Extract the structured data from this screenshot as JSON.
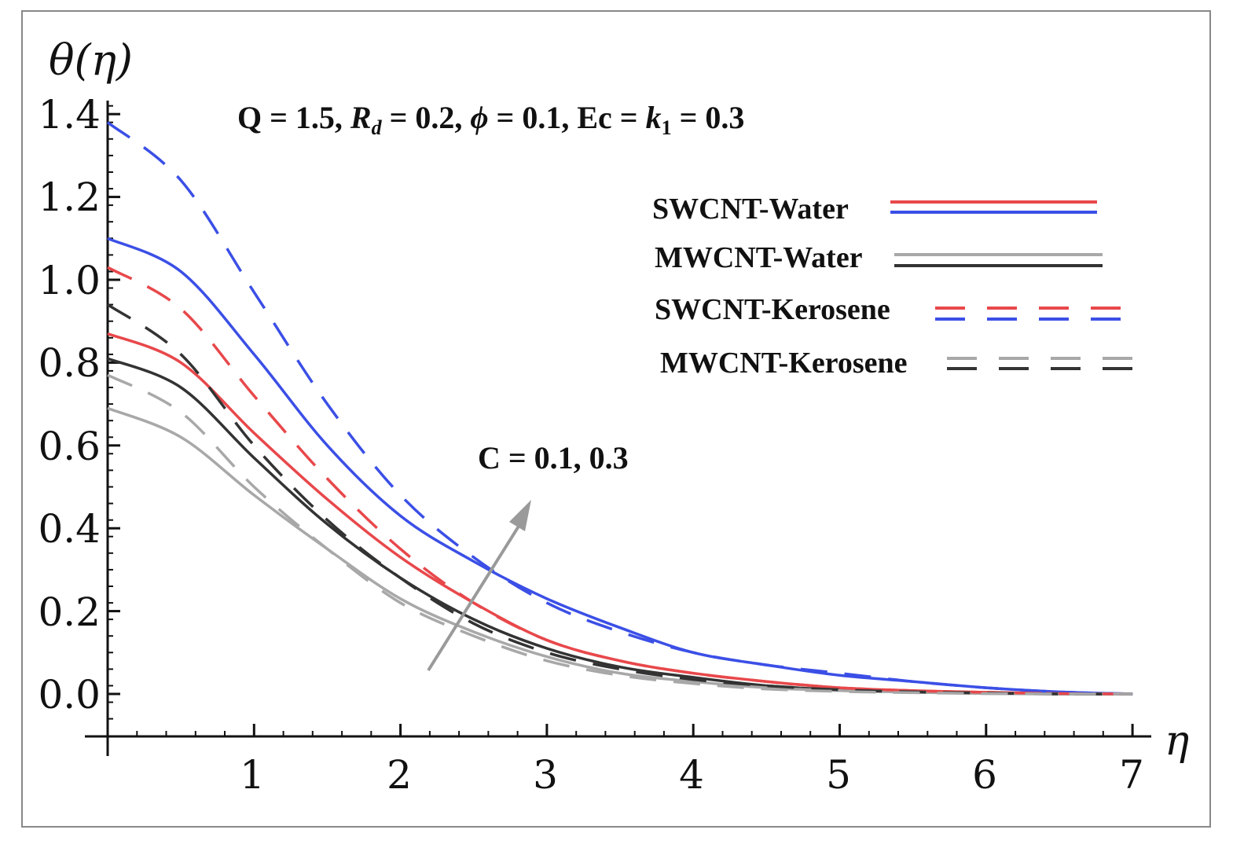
{
  "chart_data": {
    "type": "line",
    "xlabel": "η",
    "ylabel": "θ(η)",
    "xlim": [
      0,
      7
    ],
    "ylim": [
      -0.1,
      1.45
    ],
    "x_ticks": [
      1,
      2,
      3,
      4,
      5,
      6,
      7
    ],
    "y_ticks": [
      0.0,
      0.2,
      0.4,
      0.6,
      0.8,
      1.0,
      1.2,
      1.4
    ],
    "x_tick_labels": [
      "1",
      "2",
      "3",
      "4",
      "5",
      "6",
      "7"
    ],
    "y_tick_labels": [
      "0.0",
      "0.2",
      "0.4",
      "0.6",
      "0.8",
      "1.0",
      "1.2",
      "1.4"
    ],
    "parameter_text": {
      "prefix": "Q = 1.5, ",
      "rd_symbol": "R",
      "rd_sub": "d",
      "rd_value": " = 0.2, ",
      "phi_symbol": "ϕ",
      "phi_value": " = 0.1, Ec = ",
      "k_symbol": "k",
      "k_sub": "1",
      "k_value": " = 0.3"
    },
    "arrow_annotation": "C = 0.1, 0.3",
    "legend": [
      {
        "label": "SWCNT-Water",
        "colors": [
          "#e8484b",
          "#3b4fe6"
        ],
        "style": "solid"
      },
      {
        "label": "MWCNT-Water",
        "colors": [
          "#a8a8a8",
          "#333333"
        ],
        "style": "solid"
      },
      {
        "label": "SWCNT-Kerosene",
        "colors": [
          "#e8484b",
          "#3b4fe6"
        ],
        "style": "dashed"
      },
      {
        "label": "MWCNT-Kerosene",
        "colors": [
          "#a8a8a8",
          "#333333"
        ],
        "style": "dashed"
      }
    ],
    "series": [
      {
        "name": "SWCNT-Water (C = 0.3)",
        "color": "#3b4fe6",
        "dash": false,
        "x": [
          0,
          0.5,
          1,
          1.5,
          2,
          2.5,
          3,
          3.5,
          4,
          4.5,
          5,
          5.5,
          6,
          6.5,
          7
        ],
        "values": [
          1.1,
          1.02,
          0.82,
          0.6,
          0.43,
          0.32,
          0.23,
          0.16,
          0.1,
          0.07,
          0.045,
          0.03,
          0.015,
          0.005,
          0.0
        ]
      },
      {
        "name": "SWCNT-Water (C = 0.1)",
        "color": "#e8484b",
        "dash": false,
        "x": [
          0,
          0.5,
          1,
          1.5,
          2,
          2.5,
          3,
          3.5,
          4,
          4.5,
          5,
          5.5,
          6,
          6.5,
          7
        ],
        "values": [
          0.87,
          0.8,
          0.63,
          0.47,
          0.33,
          0.22,
          0.13,
          0.08,
          0.05,
          0.03,
          0.015,
          0.008,
          0.004,
          0.001,
          0.0
        ]
      },
      {
        "name": "MWCNT-Water (C = 0.3)",
        "color": "#333333",
        "dash": false,
        "x": [
          0,
          0.5,
          1,
          1.5,
          2,
          2.5,
          3,
          3.5,
          4,
          4.5,
          5,
          5.5,
          6,
          6.5,
          7
        ],
        "values": [
          0.81,
          0.74,
          0.57,
          0.41,
          0.28,
          0.18,
          0.11,
          0.065,
          0.04,
          0.02,
          0.01,
          0.005,
          0.002,
          0.0,
          0.0
        ]
      },
      {
        "name": "MWCNT-Water (C = 0.1)",
        "color": "#a8a8a8",
        "dash": false,
        "x": [
          0,
          0.5,
          1,
          1.5,
          2,
          2.5,
          3,
          3.5,
          4,
          4.5,
          5,
          5.5,
          6,
          6.5,
          7
        ],
        "values": [
          0.69,
          0.62,
          0.48,
          0.35,
          0.23,
          0.15,
          0.09,
          0.05,
          0.03,
          0.015,
          0.008,
          0.004,
          0.001,
          0.0,
          0.0
        ]
      },
      {
        "name": "SWCNT-Kerosene (C = 0.3)",
        "color": "#3b4fe6",
        "dash": true,
        "x": [
          0,
          0.5,
          1,
          1.5,
          2,
          2.5,
          3,
          3.5,
          4,
          4.5,
          5,
          5.5,
          6,
          6.5,
          7
        ],
        "values": [
          1.38,
          1.24,
          0.97,
          0.7,
          0.48,
          0.33,
          0.22,
          0.15,
          0.1,
          0.07,
          0.05,
          0.03,
          0.015,
          0.005,
          0.0
        ]
      },
      {
        "name": "SWCNT-Kerosene (C = 0.1)",
        "color": "#e8484b",
        "dash": true,
        "x": [
          0,
          0.5,
          1,
          1.5,
          2,
          2.5,
          3,
          3.5,
          4,
          4.5,
          5,
          5.5,
          6,
          6.5,
          7
        ],
        "values": [
          1.03,
          0.93,
          0.72,
          0.52,
          0.35,
          0.22,
          0.13,
          0.08,
          0.05,
          0.03,
          0.015,
          0.008,
          0.004,
          0.001,
          0.0
        ]
      },
      {
        "name": "MWCNT-Kerosene (C = 0.3)",
        "color": "#333333",
        "dash": true,
        "x": [
          0,
          0.5,
          1,
          1.5,
          2,
          2.5,
          3,
          3.5,
          4,
          4.5,
          5,
          5.5,
          6,
          6.5,
          7
        ],
        "values": [
          0.94,
          0.82,
          0.6,
          0.42,
          0.28,
          0.17,
          0.1,
          0.06,
          0.035,
          0.02,
          0.01,
          0.005,
          0.002,
          0.0,
          0.0
        ]
      },
      {
        "name": "MWCNT-Kerosene (C = 0.1)",
        "color": "#a8a8a8",
        "dash": true,
        "x": [
          0,
          0.5,
          1,
          1.5,
          2,
          2.5,
          3,
          3.5,
          4,
          4.5,
          5,
          5.5,
          6,
          6.5,
          7
        ],
        "values": [
          0.77,
          0.68,
          0.5,
          0.35,
          0.22,
          0.14,
          0.08,
          0.045,
          0.025,
          0.012,
          0.006,
          0.003,
          0.001,
          0.0,
          0.0
        ]
      }
    ]
  }
}
